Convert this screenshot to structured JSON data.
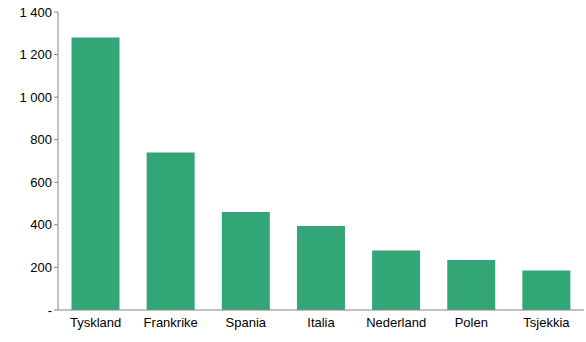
{
  "chart_data": {
    "type": "bar",
    "categories": [
      "Tyskland",
      "Frankrike",
      "Spania",
      "Italia",
      "Nederland",
      "Polen",
      "Tsjekkia"
    ],
    "values": [
      1280,
      740,
      460,
      395,
      280,
      235,
      185
    ],
    "color": "#33a677",
    "ylim": [
      0,
      1400
    ],
    "yticks": [
      {
        "value": 0,
        "label": "-"
      },
      200,
      400,
      600,
      800,
      {
        "value": 1000,
        "label": "1 000"
      },
      {
        "value": 1200,
        "label": "1 200"
      },
      {
        "value": 1400,
        "label": "1 400"
      }
    ],
    "grid": false
  }
}
